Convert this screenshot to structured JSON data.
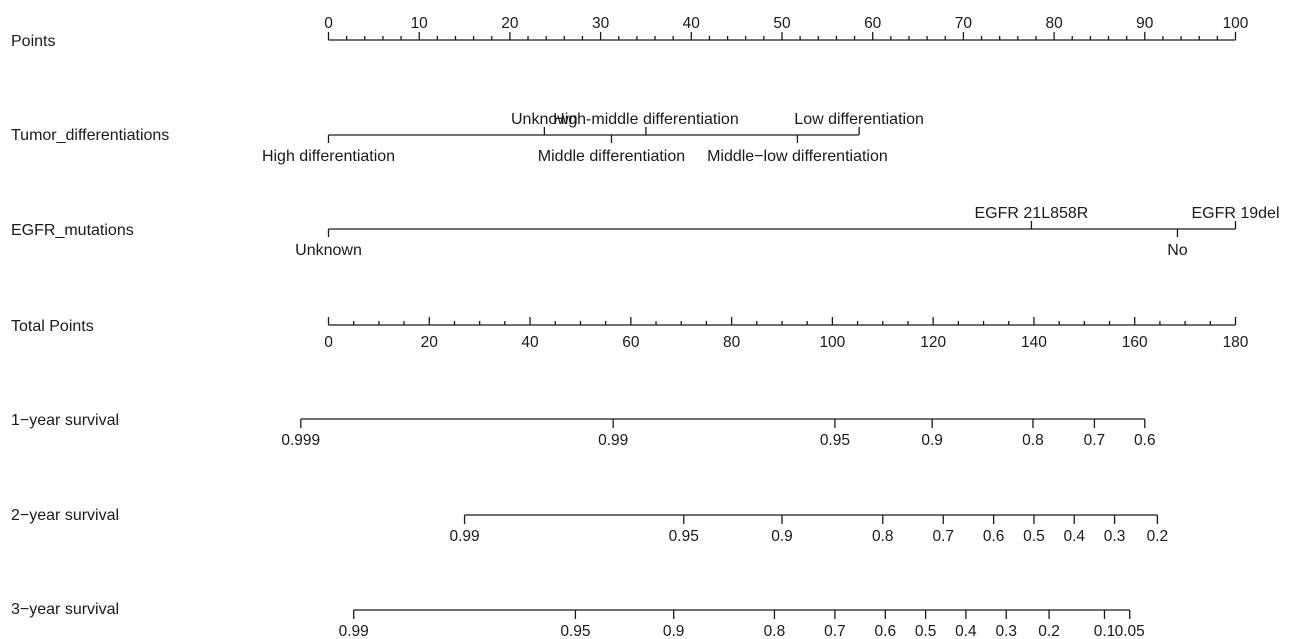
{
  "chart_data": {
    "type": "nomogram",
    "rows": [
      {
        "key": "points",
        "label": "Points",
        "kind": "linear",
        "range": [
          0,
          100
        ],
        "major_ticks": [
          0,
          10,
          20,
          30,
          40,
          50,
          60,
          70,
          80,
          90,
          100
        ],
        "minor_step": 2,
        "label_position": "above"
      },
      {
        "key": "tumor",
        "label": "Tumor_differentiations",
        "kind": "categorical",
        "categories": [
          {
            "name": "High differentiation",
            "points": 0,
            "label_side": "below"
          },
          {
            "name": "Unknown",
            "points": 23.8,
            "label_side": "above"
          },
          {
            "name": "Middle differentiation",
            "points": 31.2,
            "label_side": "below"
          },
          {
            "name": "High-middle differentiation",
            "points": 35.0,
            "label_side": "above"
          },
          {
            "name": "Middle−low differentiation",
            "points": 51.7,
            "label_side": "below"
          },
          {
            "name": "Low differentiation",
            "points": 58.5,
            "label_side": "above"
          }
        ]
      },
      {
        "key": "egfr",
        "label": "EGFR_mutations",
        "kind": "categorical",
        "categories": [
          {
            "name": "Unknown",
            "points": 0,
            "label_side": "below"
          },
          {
            "name": "EGFR 21L858R",
            "points": 77.5,
            "label_side": "above"
          },
          {
            "name": "No",
            "points": 93.6,
            "label_side": "below"
          },
          {
            "name": "EGFR 19del",
            "points": 100,
            "label_side": "above"
          }
        ]
      },
      {
        "key": "total",
        "label": "Total Points",
        "kind": "linear",
        "range": [
          0,
          180
        ],
        "major_ticks": [
          0,
          20,
          40,
          60,
          80,
          100,
          120,
          140,
          160,
          180
        ],
        "minor_step": 5,
        "label_position": "below"
      },
      {
        "key": "y1",
        "label": "1−year survival",
        "kind": "probability",
        "ticks": [
          {
            "label": "0.999",
            "total_points": -5.5
          },
          {
            "label": "0.99",
            "total_points": 56.5
          },
          {
            "label": "0.95",
            "total_points": 100.5
          },
          {
            "label": "0.9",
            "total_points": 119.8
          },
          {
            "label": "0.8",
            "total_points": 139.8
          },
          {
            "label": "0.7",
            "total_points": 152.0
          },
          {
            "label": "0.6",
            "total_points": 162.0
          }
        ]
      },
      {
        "key": "y2",
        "label": "2−year survival",
        "kind": "probability",
        "ticks": [
          {
            "label": "0.99",
            "total_points": 27.0
          },
          {
            "label": "0.95",
            "total_points": 70.5
          },
          {
            "label": "0.9",
            "total_points": 90.0
          },
          {
            "label": "0.8",
            "total_points": 110.0
          },
          {
            "label": "0.7",
            "total_points": 122.0
          },
          {
            "label": "0.6",
            "total_points": 132.0
          },
          {
            "label": "0.5",
            "total_points": 140.0
          },
          {
            "label": "0.4",
            "total_points": 148.0
          },
          {
            "label": "0.3",
            "total_points": 156.0
          },
          {
            "label": "0.2",
            "total_points": 164.5
          }
        ]
      },
      {
        "key": "y3",
        "label": "3−year survival",
        "kind": "probability",
        "ticks": [
          {
            "label": "0.99",
            "total_points": 5.0
          },
          {
            "label": "0.95",
            "total_points": 49.0
          },
          {
            "label": "0.9",
            "total_points": 68.5
          },
          {
            "label": "0.8",
            "total_points": 88.5
          },
          {
            "label": "0.7",
            "total_points": 100.5
          },
          {
            "label": "0.6",
            "total_points": 110.5
          },
          {
            "label": "0.5",
            "total_points": 118.5
          },
          {
            "label": "0.4",
            "total_points": 126.5
          },
          {
            "label": "0.3",
            "total_points": 134.5
          },
          {
            "label": "0.2",
            "total_points": 143.0
          },
          {
            "label": "0.1",
            "total_points": 154.0
          },
          {
            "label": "0.05",
            "total_points": 159.0
          }
        ]
      }
    ]
  }
}
